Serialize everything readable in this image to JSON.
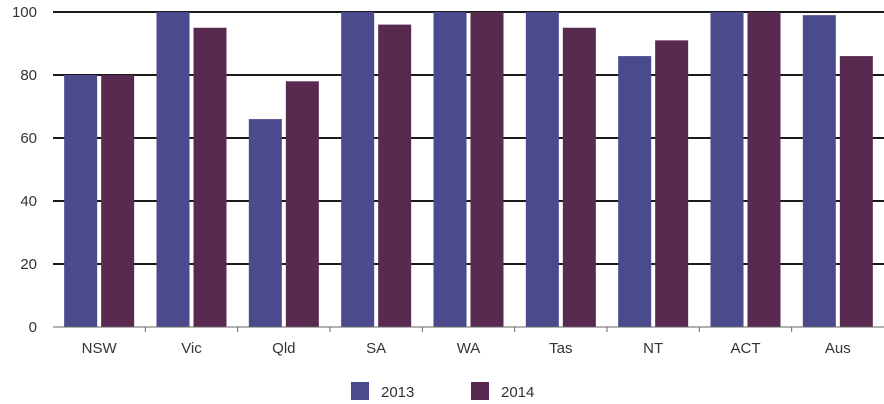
{
  "chart_data": {
    "type": "bar",
    "categories": [
      "NSW",
      "Vic",
      "Qld",
      "SA",
      "WA",
      "Tas",
      "NT",
      "ACT",
      "Aus"
    ],
    "series": [
      {
        "name": "2013",
        "color": "#4b4a8c",
        "values": [
          80,
          100,
          66,
          100,
          100,
          100,
          86,
          100,
          99
        ]
      },
      {
        "name": "2014",
        "color": "#582a4f",
        "values": [
          80,
          95,
          78,
          96,
          100,
          95,
          91,
          100,
          86
        ]
      }
    ],
    "ylim": [
      0,
      100
    ],
    "yticks": [
      0,
      20,
      40,
      60,
      80,
      100
    ],
    "grid": true,
    "legend_position": "bottom-center",
    "title": "",
    "xlabel": "",
    "ylabel": ""
  }
}
